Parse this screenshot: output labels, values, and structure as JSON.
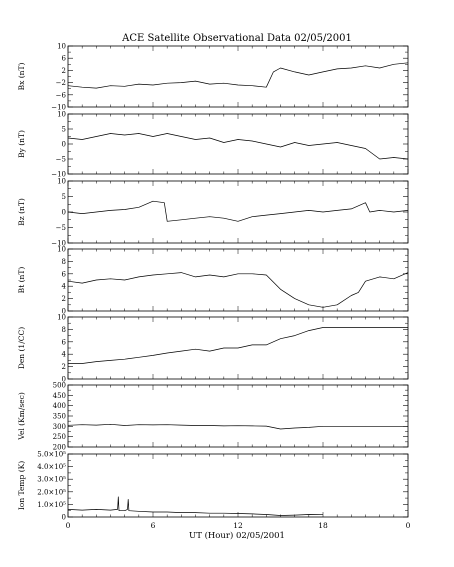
{
  "chart_data": {
    "type": "line",
    "title": "ACE Satellite Observational Data   02/05/2001",
    "xlabel": "UT (Hour)   02/05/2001",
    "x_ticks": [
      "0",
      "6",
      "12",
      "18",
      "0"
    ],
    "xlim": [
      0,
      24
    ],
    "grid": false,
    "panels": [
      {
        "ylabel": "Bx (nT)",
        "ylim": [
          -10,
          10
        ],
        "ytick_labels": [
          "−10",
          "−6",
          "−2",
          "2",
          "6",
          "10"
        ],
        "ytick_values": [
          -10,
          -6,
          -2,
          2,
          6,
          10
        ],
        "series": [
          {
            "x": [
              0,
              1,
              2,
              3,
              4,
              5,
              6,
              7,
              8,
              9,
              10,
              11,
              12,
              13,
              14,
              14.5,
              15,
              16,
              17,
              18,
              19,
              20,
              21,
              22,
              23,
              24
            ],
            "values": [
              -3,
              -3.5,
              -3.8,
              -3,
              -3.2,
              -2.5,
              -2.8,
              -2.2,
              -2,
              -1.5,
              -2.5,
              -2.2,
              -2.8,
              -3,
              -3.5,
              1.5,
              2.8,
              1.5,
              0.5,
              1.5,
              2.5,
              2.8,
              3.5,
              2.8,
              4,
              4.5
            ]
          }
        ]
      },
      {
        "ylabel": "By (nT)",
        "ylim": [
          -10,
          10
        ],
        "ytick_labels": [
          "−10",
          "−5",
          "0",
          "5",
          "10"
        ],
        "ytick_values": [
          -10,
          -5,
          0,
          5,
          10
        ],
        "series": [
          {
            "x": [
              0,
              1,
              2,
              3,
              4,
              5,
              6,
              7,
              8,
              9,
              10,
              11,
              12,
              13,
              14,
              15,
              16,
              17,
              18,
              19,
              20,
              21,
              22,
              23,
              24
            ],
            "values": [
              2,
              1.5,
              2.5,
              3.5,
              3,
              3.5,
              2.5,
              3.5,
              2.5,
              1.5,
              2,
              0.5,
              1.5,
              1,
              0,
              -1,
              0.5,
              -0.5,
              0,
              0.5,
              -0.5,
              -1.5,
              -5,
              -4.5,
              -5
            ]
          }
        ]
      },
      {
        "ylabel": "Bz (nT)",
        "ylim": [
          -10,
          10
        ],
        "ytick_labels": [
          "−10",
          "−5",
          "0",
          "5",
          "10"
        ],
        "ytick_values": [
          -10,
          -5,
          0,
          5,
          10
        ],
        "series": [
          {
            "x": [
              0,
              1,
              2,
              3,
              4,
              5,
              6,
              6.8,
              7,
              8,
              9,
              10,
              11,
              12,
              13,
              14,
              15,
              16,
              17,
              18,
              19,
              20,
              21,
              21.3,
              22,
              23,
              24
            ],
            "values": [
              0,
              -0.5,
              0,
              0.5,
              0.8,
              1.5,
              3.5,
              3,
              -3,
              -2.5,
              -2,
              -1.5,
              -2,
              -3,
              -1.5,
              -1,
              -0.5,
              0,
              0.5,
              0,
              0.5,
              1,
              3,
              0,
              0.5,
              0,
              0.5
            ]
          }
        ]
      },
      {
        "ylabel": "Bt (nT)",
        "ylim": [
          0,
          10
        ],
        "ytick_labels": [
          "0",
          "2",
          "4",
          "6",
          "8",
          "10"
        ],
        "ytick_values": [
          0,
          2,
          4,
          6,
          8,
          10
        ],
        "series": [
          {
            "x": [
              0,
              1,
              2,
              3,
              4,
              5,
              6,
              7,
              8,
              9,
              10,
              11,
              12,
              13,
              14,
              15,
              16,
              17,
              18,
              19,
              20,
              20.5,
              21,
              22,
              23,
              24
            ],
            "values": [
              4.8,
              4.5,
              5,
              5.2,
              5,
              5.5,
              5.8,
              6,
              6.2,
              5.5,
              5.8,
              5.5,
              6,
              6,
              5.8,
              3.5,
              2,
              1,
              0.6,
              1,
              2.5,
              3,
              4.8,
              5.5,
              5.2,
              6.2
            ]
          }
        ]
      },
      {
        "ylabel": "Den (1/CC)",
        "ylim": [
          0,
          10
        ],
        "ytick_labels": [
          "0",
          "2",
          "4",
          "6",
          "8",
          "10"
        ],
        "ytick_values": [
          0,
          2,
          4,
          6,
          8,
          10
        ],
        "series": [
          {
            "x": [
              0,
              1,
              2,
              3,
              4,
              5,
              6,
              7,
              8,
              9,
              10,
              11,
              12,
              13,
              14,
              15,
              16,
              17,
              18,
              18.01,
              24
            ],
            "values": [
              2.5,
              2.5,
              2.8,
              3,
              3.2,
              3.5,
              3.8,
              4.2,
              4.5,
              4.8,
              4.5,
              5,
              5,
              5.5,
              5.5,
              6.5,
              7,
              7.8,
              8.3,
              8.3,
              8.3
            ]
          }
        ]
      },
      {
        "ylabel": "Vel (Km/sec)",
        "ylim": [
          200,
          500
        ],
        "ytick_labels": [
          "200",
          "250",
          "300",
          "350",
          "400",
          "450",
          "500"
        ],
        "ytick_values": [
          200,
          250,
          300,
          350,
          400,
          450,
          500
        ],
        "series": [
          {
            "x": [
              0,
              1,
              2,
              3,
              4,
              5,
              6,
              7,
              8,
              9,
              10,
              11,
              12,
              13,
              14,
              15,
              16,
              17,
              18,
              18.01,
              24
            ],
            "values": [
              305,
              308,
              306,
              310,
              304,
              308,
              307,
              308,
              306,
              304,
              304,
              302,
              303,
              302,
              301,
              287,
              292,
              295,
              300,
              300,
              300
            ]
          }
        ]
      },
      {
        "ylabel": "Ion Temp (K)",
        "ylim": [
          0,
          500000
        ],
        "ytick_labels": [
          "0",
          "1.0×10⁵",
          "2.0×10⁵",
          "3.0×10⁵",
          "4.0×10⁵",
          "5.0×10⁵"
        ],
        "ytick_values": [
          0,
          100000,
          200000,
          300000,
          400000,
          500000
        ],
        "series": [
          {
            "x": [
              0,
              1,
              2,
              3,
              3.5,
              3.55,
              3.6,
              4,
              4.2,
              4.25,
              4.3,
              5,
              6,
              7,
              8,
              9,
              10,
              11,
              12,
              13,
              14,
              15,
              16,
              17,
              18
            ],
            "values": [
              60000,
              55000,
              60000,
              55000,
              60000,
              160000,
              50000,
              50000,
              60000,
              140000,
              50000,
              45000,
              40000,
              40000,
              35000,
              35000,
              30000,
              30000,
              28000,
              25000,
              20000,
              12000,
              15000,
              20000,
              18000
            ]
          }
        ]
      }
    ]
  }
}
